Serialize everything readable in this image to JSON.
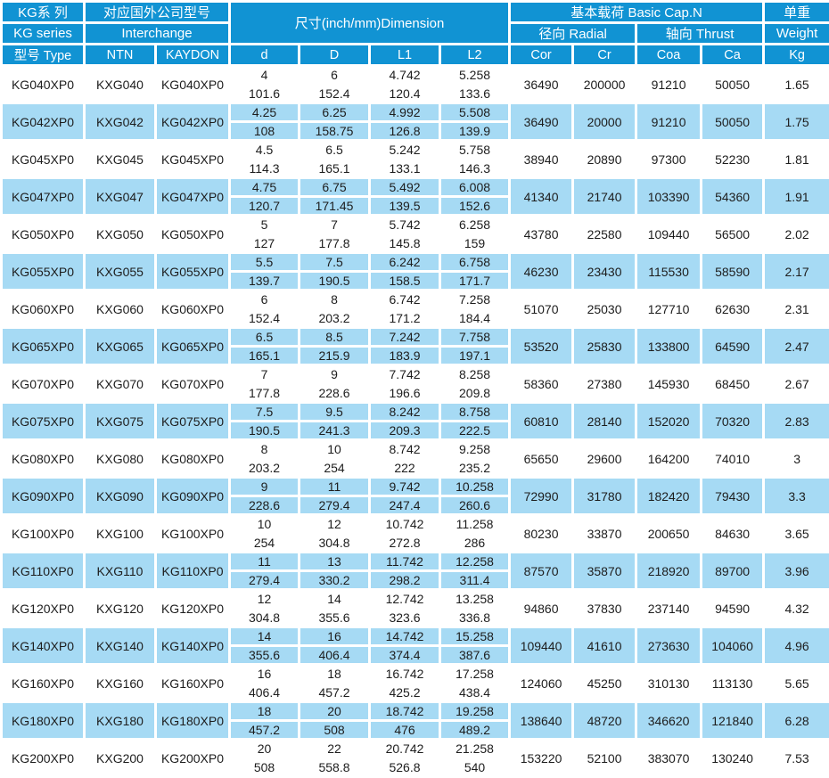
{
  "colors": {
    "header_bg": "#1193d3",
    "row_alt_bg": "#a6daf4",
    "row_bg": "#ffffff",
    "header_text": "#ffffff",
    "text": "#1d1d1d",
    "border": "#ffffff"
  },
  "header": {
    "series": {
      "line1": "KG系 列",
      "line2": "KG series",
      "line3": "型号 Type"
    },
    "interchange": {
      "title": "对应国外公司型号",
      "subtitle": "Interchange",
      "ntn": "NTN",
      "kaydon": "KAYDON"
    },
    "dimension": {
      "title": "尺寸(inch/mm)Dimension",
      "cols": [
        "d",
        "D",
        "L1",
        "L2"
      ]
    },
    "capacity": {
      "title": "基本载荷 Basic Cap.N",
      "radial": "径向 Radial",
      "thrust": "轴向 Thrust",
      "cols": [
        "Cor",
        "Cr",
        "Coa",
        "Ca"
      ]
    },
    "weight": {
      "line1": "单重",
      "line2": "Weight",
      "line3": "Kg"
    }
  },
  "rows": [
    {
      "type": "KG040XP0",
      "ntn": "KXG040",
      "kaydon": "KG040XP0",
      "d": [
        "4",
        "101.6"
      ],
      "D": [
        "6",
        "152.4"
      ],
      "L1": [
        "4.742",
        "120.4"
      ],
      "L2": [
        "5.258",
        "133.6"
      ],
      "cor": "36490",
      "cr": "200000",
      "coa": "91210",
      "ca": "50050",
      "kg": "1.65"
    },
    {
      "type": "KG042XP0",
      "ntn": "KXG042",
      "kaydon": "KG042XP0",
      "d": [
        "4.25",
        "108"
      ],
      "D": [
        "6.25",
        "158.75"
      ],
      "L1": [
        "4.992",
        "126.8"
      ],
      "L2": [
        "5.508",
        "139.9"
      ],
      "cor": "36490",
      "cr": "20000",
      "coa": "91210",
      "ca": "50050",
      "kg": "1.75"
    },
    {
      "type": "KG045XP0",
      "ntn": "KXG045",
      "kaydon": "KG045XP0",
      "d": [
        "4.5",
        "114.3"
      ],
      "D": [
        "6.5",
        "165.1"
      ],
      "L1": [
        "5.242",
        "133.1"
      ],
      "L2": [
        "5.758",
        "146.3"
      ],
      "cor": "38940",
      "cr": "20890",
      "coa": "97300",
      "ca": "52230",
      "kg": "1.81"
    },
    {
      "type": "KG047XP0",
      "ntn": "KXG047",
      "kaydon": "KG047XP0",
      "d": [
        "4.75",
        "120.7"
      ],
      "D": [
        "6.75",
        "171.45"
      ],
      "L1": [
        "5.492",
        "139.5"
      ],
      "L2": [
        "6.008",
        "152.6"
      ],
      "cor": "41340",
      "cr": "21740",
      "coa": "103390",
      "ca": "54360",
      "kg": "1.91"
    },
    {
      "type": "KG050XP0",
      "ntn": "KXG050",
      "kaydon": "KG050XP0",
      "d": [
        "5",
        "127"
      ],
      "D": [
        "7",
        "177.8"
      ],
      "L1": [
        "5.742",
        "145.8"
      ],
      "L2": [
        "6.258",
        "159"
      ],
      "cor": "43780",
      "cr": "22580",
      "coa": "109440",
      "ca": "56500",
      "kg": "2.02"
    },
    {
      "type": "KG055XP0",
      "ntn": "KXG055",
      "kaydon": "KG055XP0",
      "d": [
        "5.5",
        "139.7"
      ],
      "D": [
        "7.5",
        "190.5"
      ],
      "L1": [
        "6.242",
        "158.5"
      ],
      "L2": [
        "6.758",
        "171.7"
      ],
      "cor": "46230",
      "cr": "23430",
      "coa": "115530",
      "ca": "58590",
      "kg": "2.17"
    },
    {
      "type": "KG060XP0",
      "ntn": "KXG060",
      "kaydon": "KG060XP0",
      "d": [
        "6",
        "152.4"
      ],
      "D": [
        "8",
        "203.2"
      ],
      "L1": [
        "6.742",
        "171.2"
      ],
      "L2": [
        "7.258",
        "184.4"
      ],
      "cor": "51070",
      "cr": "25030",
      "coa": "127710",
      "ca": "62630",
      "kg": "2.31"
    },
    {
      "type": "KG065XP0",
      "ntn": "KXG065",
      "kaydon": "KG065XP0",
      "d": [
        "6.5",
        "165.1"
      ],
      "D": [
        "8.5",
        "215.9"
      ],
      "L1": [
        "7.242",
        "183.9"
      ],
      "L2": [
        "7.758",
        "197.1"
      ],
      "cor": "53520",
      "cr": "25830",
      "coa": "133800",
      "ca": "64590",
      "kg": "2.47"
    },
    {
      "type": "KG070XP0",
      "ntn": "KXG070",
      "kaydon": "KG070XP0",
      "d": [
        "7",
        "177.8"
      ],
      "D": [
        "9",
        "228.6"
      ],
      "L1": [
        "7.742",
        "196.6"
      ],
      "L2": [
        "8.258",
        "209.8"
      ],
      "cor": "58360",
      "cr": "27380",
      "coa": "145930",
      "ca": "68450",
      "kg": "2.67"
    },
    {
      "type": "KG075XP0",
      "ntn": "KXG075",
      "kaydon": "KG075XP0",
      "d": [
        "7.5",
        "190.5"
      ],
      "D": [
        "9.5",
        "241.3"
      ],
      "L1": [
        "8.242",
        "209.3"
      ],
      "L2": [
        "8.758",
        "222.5"
      ],
      "cor": "60810",
      "cr": "28140",
      "coa": "152020",
      "ca": "70320",
      "kg": "2.83"
    },
    {
      "type": "KG080XP0",
      "ntn": "KXG080",
      "kaydon": "KG080XP0",
      "d": [
        "8",
        "203.2"
      ],
      "D": [
        "10",
        "254"
      ],
      "L1": [
        "8.742",
        "222"
      ],
      "L2": [
        "9.258",
        "235.2"
      ],
      "cor": "65650",
      "cr": "29600",
      "coa": "164200",
      "ca": "74010",
      "kg": "3"
    },
    {
      "type": "KG090XP0",
      "ntn": "KXG090",
      "kaydon": "KG090XP0",
      "d": [
        "9",
        "228.6"
      ],
      "D": [
        "11",
        "279.4"
      ],
      "L1": [
        "9.742",
        "247.4"
      ],
      "L2": [
        "10.258",
        "260.6"
      ],
      "cor": "72990",
      "cr": "31780",
      "coa": "182420",
      "ca": "79430",
      "kg": "3.3"
    },
    {
      "type": "KG100XP0",
      "ntn": "KXG100",
      "kaydon": "KG100XP0",
      "d": [
        "10",
        "254"
      ],
      "D": [
        "12",
        "304.8"
      ],
      "L1": [
        "10.742",
        "272.8"
      ],
      "L2": [
        "11.258",
        "286"
      ],
      "cor": "80230",
      "cr": "33870",
      "coa": "200650",
      "ca": "84630",
      "kg": "3.65"
    },
    {
      "type": "KG110XP0",
      "ntn": "KXG110",
      "kaydon": "KG110XP0",
      "d": [
        "11",
        "279.4"
      ],
      "D": [
        "13",
        "330.2"
      ],
      "L1": [
        "11.742",
        "298.2"
      ],
      "L2": [
        "12.258",
        "311.4"
      ],
      "cor": "87570",
      "cr": "35870",
      "coa": "218920",
      "ca": "89700",
      "kg": "3.96"
    },
    {
      "type": "KG120XP0",
      "ntn": "KXG120",
      "kaydon": "KG120XP0",
      "d": [
        "12",
        "304.8"
      ],
      "D": [
        "14",
        "355.6"
      ],
      "L1": [
        "12.742",
        "323.6"
      ],
      "L2": [
        "13.258",
        "336.8"
      ],
      "cor": "94860",
      "cr": "37830",
      "coa": "237140",
      "ca": "94590",
      "kg": "4.32"
    },
    {
      "type": "KG140XP0",
      "ntn": "KXG140",
      "kaydon": "KG140XP0",
      "d": [
        "14",
        "355.6"
      ],
      "D": [
        "16",
        "406.4"
      ],
      "L1": [
        "14.742",
        "374.4"
      ],
      "L2": [
        "15.258",
        "387.6"
      ],
      "cor": "109440",
      "cr": "41610",
      "coa": "273630",
      "ca": "104060",
      "kg": "4.96"
    },
    {
      "type": "KG160XP0",
      "ntn": "KXG160",
      "kaydon": "KG160XP0",
      "d": [
        "16",
        "406.4"
      ],
      "D": [
        "18",
        "457.2"
      ],
      "L1": [
        "16.742",
        "425.2"
      ],
      "L2": [
        "17.258",
        "438.4"
      ],
      "cor": "124060",
      "cr": "45250",
      "coa": "310130",
      "ca": "113130",
      "kg": "5.65"
    },
    {
      "type": "KG180XP0",
      "ntn": "KXG180",
      "kaydon": "KG180XP0",
      "d": [
        "18",
        "457.2"
      ],
      "D": [
        "20",
        "508"
      ],
      "L1": [
        "18.742",
        "476"
      ],
      "L2": [
        "19.258",
        "489.2"
      ],
      "cor": "138640",
      "cr": "48720",
      "coa": "346620",
      "ca": "121840",
      "kg": "6.28"
    },
    {
      "type": "KG200XP0",
      "ntn": "KXG200",
      "kaydon": "KG200XP0",
      "d": [
        "20",
        "508"
      ],
      "D": [
        "22",
        "558.8"
      ],
      "L1": [
        "20.742",
        "526.8"
      ],
      "L2": [
        "21.258",
        "540"
      ],
      "cor": "153220",
      "cr": "52100",
      "coa": "383070",
      "ca": "130240",
      "kg": "7.53"
    }
  ]
}
